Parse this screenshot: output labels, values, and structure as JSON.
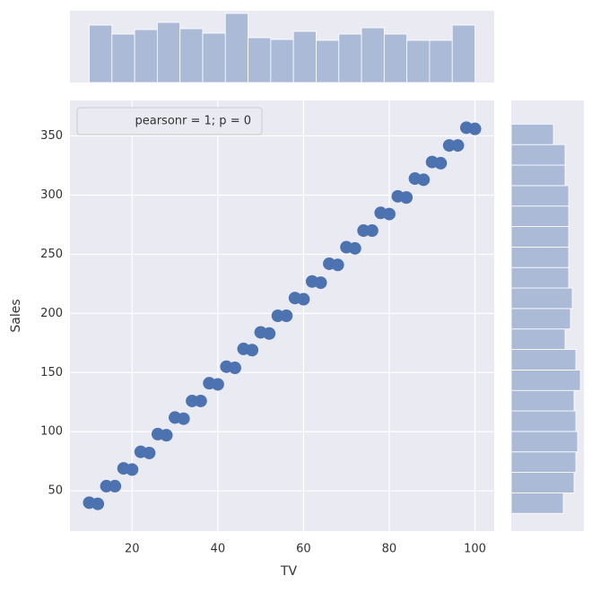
{
  "chart_data": [
    {
      "type": "scatter",
      "x_label": "TV",
      "y_label": "Sales",
      "legend": {
        "text": "pearsonr = 1; p = 0",
        "position": "upper left"
      },
      "x": [
        10,
        12,
        14,
        16,
        18,
        20,
        22,
        24,
        26,
        28,
        30,
        32,
        34,
        36,
        38,
        40,
        42,
        44,
        46,
        48,
        50,
        52,
        54,
        56,
        58,
        60,
        62,
        64,
        66,
        68,
        70,
        72,
        74,
        76,
        78,
        80,
        82,
        84,
        86,
        88,
        90,
        92,
        94,
        96,
        98,
        100
      ],
      "values": [
        40,
        39,
        54,
        54,
        69,
        68,
        83,
        82,
        98,
        97,
        112,
        111,
        126,
        126,
        141,
        140,
        155,
        154,
        170,
        169,
        184,
        183,
        198,
        198,
        213,
        212,
        227,
        226,
        242,
        241,
        256,
        255,
        270,
        270,
        285,
        284,
        299,
        298,
        314,
        313,
        328,
        327,
        342,
        342,
        357,
        356
      ],
      "color": "#4c72b0",
      "xlim": [
        5.5,
        104.5
      ],
      "ylim": [
        16,
        380
      ],
      "xticks": [
        20,
        40,
        60,
        80,
        100
      ],
      "yticks": [
        50,
        100,
        150,
        200,
        250,
        300,
        350
      ],
      "grid": true
    },
    {
      "type": "histogram",
      "orientation": "vertical",
      "bins": [
        10,
        15.29,
        20.59,
        25.88,
        31.18,
        36.47,
        41.76,
        47.06,
        52.35,
        57.65,
        62.94,
        68.24,
        73.53,
        78.82,
        84.12,
        89.41,
        94.71,
        100
      ],
      "counts": [
        64,
        54,
        59,
        67,
        60,
        55,
        77,
        50,
        48,
        57,
        47,
        54,
        61,
        54,
        47,
        47,
        64
      ],
      "color": "#4c72b0",
      "xlim": [
        5.5,
        104.5
      ],
      "ylim": [
        0,
        80
      ]
    },
    {
      "type": "histogram",
      "orientation": "horizontal",
      "bins": [
        31,
        48.32,
        65.63,
        82.95,
        100.26,
        117.58,
        134.89,
        152.21,
        169.53,
        186.84,
        204.16,
        221.47,
        238.79,
        256.11,
        273.42,
        290.74,
        308.05,
        325.37,
        342.68,
        360
      ],
      "counts": [
        58,
        70,
        72,
        74,
        72,
        70,
        77,
        72,
        60,
        66,
        68,
        64,
        64,
        64,
        64,
        64,
        60,
        60,
        47
      ],
      "color": "#4c72b0",
      "ylim": [
        16,
        380
      ],
      "xlim": [
        0,
        81
      ]
    }
  ]
}
